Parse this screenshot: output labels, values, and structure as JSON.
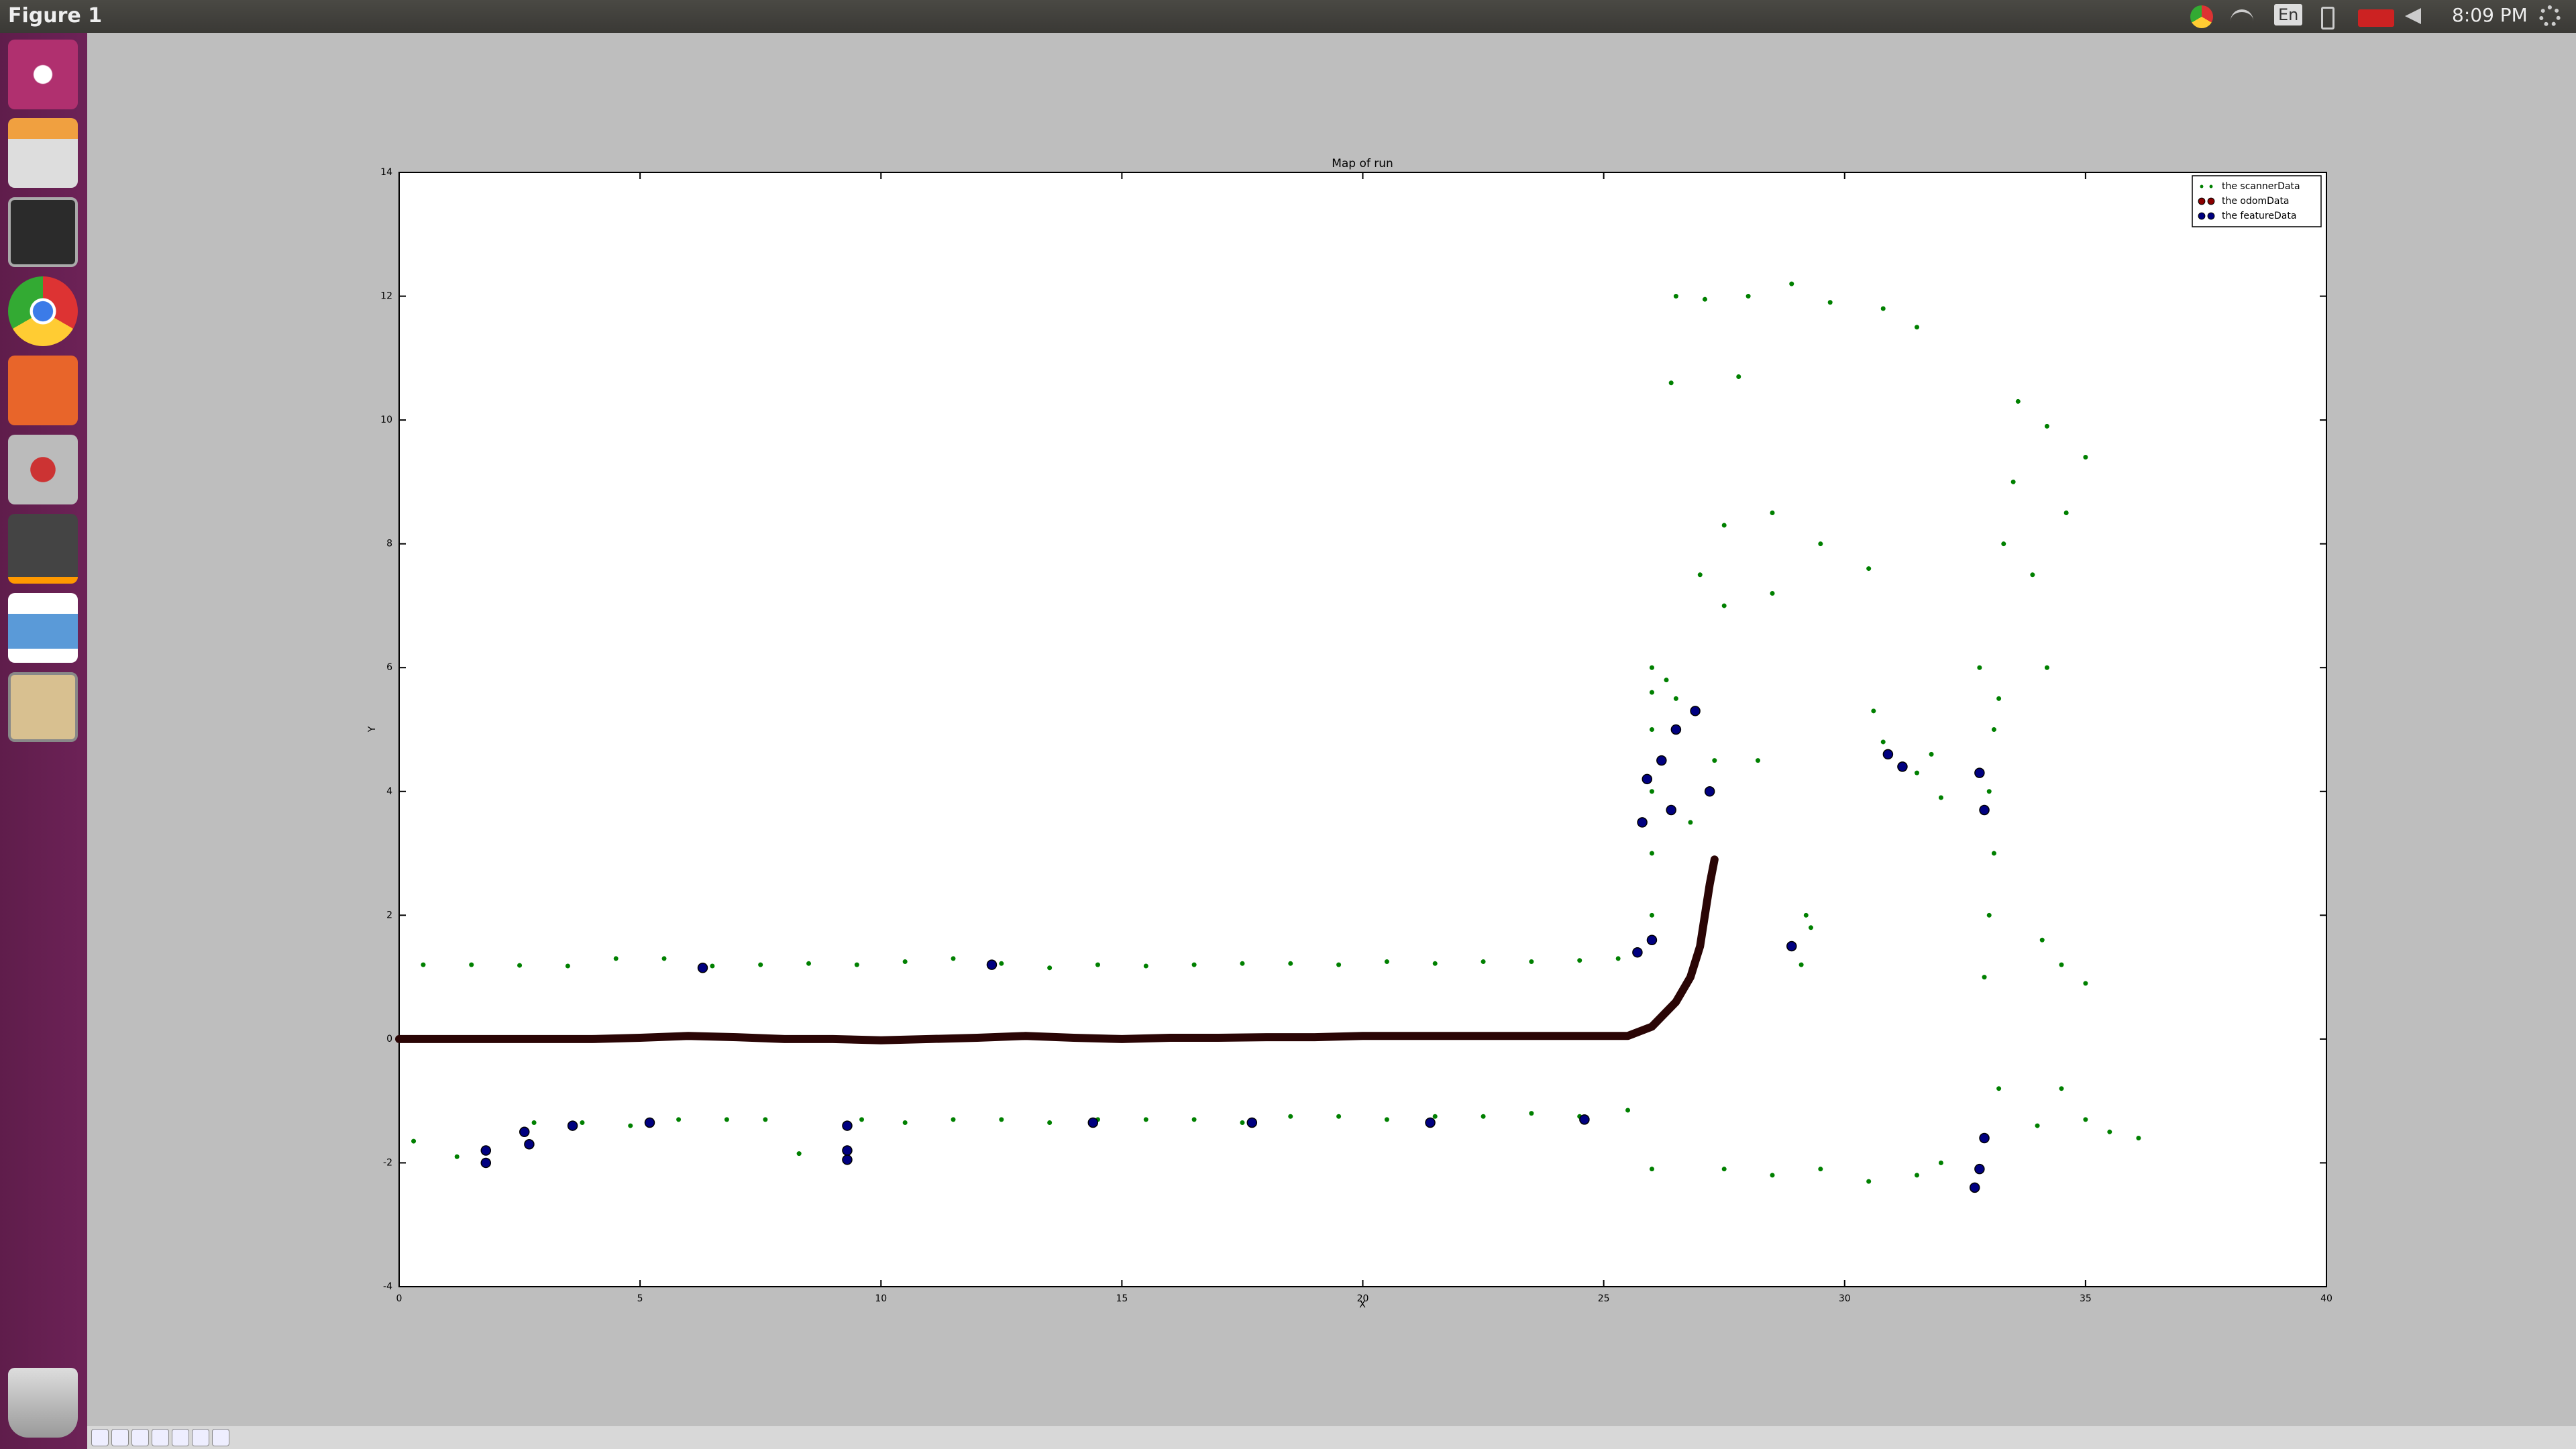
{
  "topbar": {
    "title": "Figure 1",
    "lang": "En",
    "clock": "8:09 PM"
  },
  "chart_data": {
    "type": "scatter",
    "title": "Map of run",
    "xlabel": "X",
    "ylabel": "Y",
    "xlim": [
      0,
      40
    ],
    "xticks": [
      0,
      5,
      10,
      15,
      20,
      25,
      30,
      35,
      40
    ],
    "ylim": [
      -4,
      14
    ],
    "yticks": [
      -4,
      -2,
      0,
      2,
      4,
      6,
      8,
      10,
      12,
      14
    ],
    "legend": "upper right",
    "grid": false,
    "series": [
      {
        "name": "the scannerData",
        "color": "#008000",
        "x": [
          0.5,
          1.5,
          2.5,
          3.5,
          4.5,
          5.5,
          6.5,
          7.5,
          8.5,
          9.5,
          10.5,
          11.5,
          12.5,
          13.5,
          14.5,
          15.5,
          16.5,
          17.5,
          18.5,
          19.5,
          20.5,
          21.5,
          22.5,
          23.5,
          24.5,
          25.3,
          0.3,
          1.2,
          2.8,
          3.8,
          4.8,
          5.8,
          6.8,
          7.6,
          8.3,
          9.6,
          10.5,
          11.5,
          12.5,
          13.5,
          14.5,
          15.5,
          16.5,
          17.5,
          18.5,
          19.5,
          20.5,
          21.5,
          22.5,
          23.5,
          24.5,
          25.5,
          26.0,
          26.0,
          26.0,
          26.0,
          26.0,
          26.0,
          26.5,
          27.3,
          26.8,
          29.1,
          29.3,
          29.2,
          32.9,
          33.0,
          33.1,
          33.0,
          33.1,
          32.8,
          33.2,
          33.3,
          33.5,
          33.6,
          34.2,
          33.9,
          34.6,
          35.0,
          34.2,
          26.4,
          26.5,
          27.1,
          28.0,
          28.9,
          29.7,
          30.8,
          31.5,
          27.8,
          27.0,
          27.5,
          28.5,
          29.5,
          30.5,
          27.5,
          28.5,
          30.6,
          31.5,
          32.0,
          31.8,
          30.8,
          26.0,
          27.5,
          28.5,
          29.5,
          30.5,
          31.5,
          32.0,
          33.2,
          34.0,
          35.0,
          36.1,
          35.5,
          34.5,
          34.1,
          34.5,
          35.0,
          26.3,
          28.2
        ],
        "values": [
          1.2,
          1.2,
          1.19,
          1.18,
          1.3,
          1.3,
          1.18,
          1.2,
          1.22,
          1.2,
          1.25,
          1.3,
          1.22,
          1.15,
          1.2,
          1.18,
          1.2,
          1.22,
          1.22,
          1.2,
          1.25,
          1.22,
          1.25,
          1.25,
          1.27,
          1.3,
          -1.65,
          -1.9,
          -1.35,
          -1.35,
          -1.4,
          -1.3,
          -1.3,
          -1.3,
          -1.85,
          -1.3,
          -1.35,
          -1.3,
          -1.3,
          -1.35,
          -1.3,
          -1.3,
          -1.3,
          -1.35,
          -1.25,
          -1.25,
          -1.3,
          -1.25,
          -1.25,
          -1.2,
          -1.25,
          -1.15,
          2,
          3,
          4,
          5,
          5.6,
          6,
          5.5,
          4.5,
          3.5,
          1.2,
          1.8,
          2.0,
          1.0,
          2.0,
          3.0,
          4.0,
          5.0,
          6.0,
          5.5,
          8.0,
          9.0,
          10.3,
          9.9,
          7.5,
          8.5,
          9.4,
          6.0,
          10.6,
          12.0,
          11.95,
          12.0,
          12.2,
          11.9,
          11.8,
          11.5,
          10.7,
          7.5,
          8.3,
          8.5,
          8.0,
          7.6,
          7.0,
          7.2,
          5.3,
          4.3,
          3.9,
          4.6,
          4.8,
          -2.1,
          -2.1,
          -2.2,
          -2.1,
          -2.3,
          -2.2,
          -2.0,
          -0.8,
          -1.4,
          -1.3,
          -1.6,
          -1.5,
          -0.8,
          1.6,
          1.2,
          0.9,
          5.8,
          4.5
        ]
      },
      {
        "name": "the odomData",
        "color": "#8b0000",
        "x": [
          0,
          1,
          2,
          3,
          4,
          5,
          6,
          7,
          8,
          9,
          10,
          11,
          12,
          13,
          14,
          15,
          16,
          17,
          18,
          19,
          20,
          21,
          22,
          23,
          24,
          25,
          25.5,
          26,
          26.5,
          26.8,
          27.0,
          27.1,
          27.2,
          27.3
        ],
        "values": [
          0,
          0,
          0,
          0,
          0,
          0.02,
          0.05,
          0.03,
          0,
          0,
          -0.02,
          0,
          0.02,
          0.05,
          0.02,
          0,
          0.02,
          0.02,
          0.03,
          0.03,
          0.05,
          0.05,
          0.05,
          0.05,
          0.05,
          0.05,
          0.05,
          0.2,
          0.6,
          1.0,
          1.5,
          2.0,
          2.5,
          2.9
        ]
      },
      {
        "name": "the featureData",
        "color": "#000080",
        "x": [
          6.3,
          12.3,
          25.7,
          26.0,
          25.8,
          25.9,
          26.2,
          26.5,
          26.9,
          26.4,
          27.2,
          1.8,
          1.8,
          2.6,
          2.7,
          3.6,
          5.2,
          9.3,
          9.3,
          9.3,
          14.4,
          17.7,
          21.4,
          24.6,
          28.9,
          30.9,
          31.2,
          32.8,
          32.9,
          32.9,
          32.8,
          32.7
        ],
        "values": [
          1.15,
          1.2,
          1.4,
          1.6,
          3.5,
          4.2,
          4.5,
          5.0,
          5.3,
          3.7,
          4.0,
          -1.8,
          -2.0,
          -1.5,
          -1.7,
          -1.4,
          -1.35,
          -1.4,
          -1.8,
          -1.95,
          -1.35,
          -1.35,
          -1.35,
          -1.3,
          1.5,
          4.6,
          4.4,
          4.3,
          3.7,
          -1.6,
          -2.1,
          -2.4
        ]
      }
    ]
  }
}
